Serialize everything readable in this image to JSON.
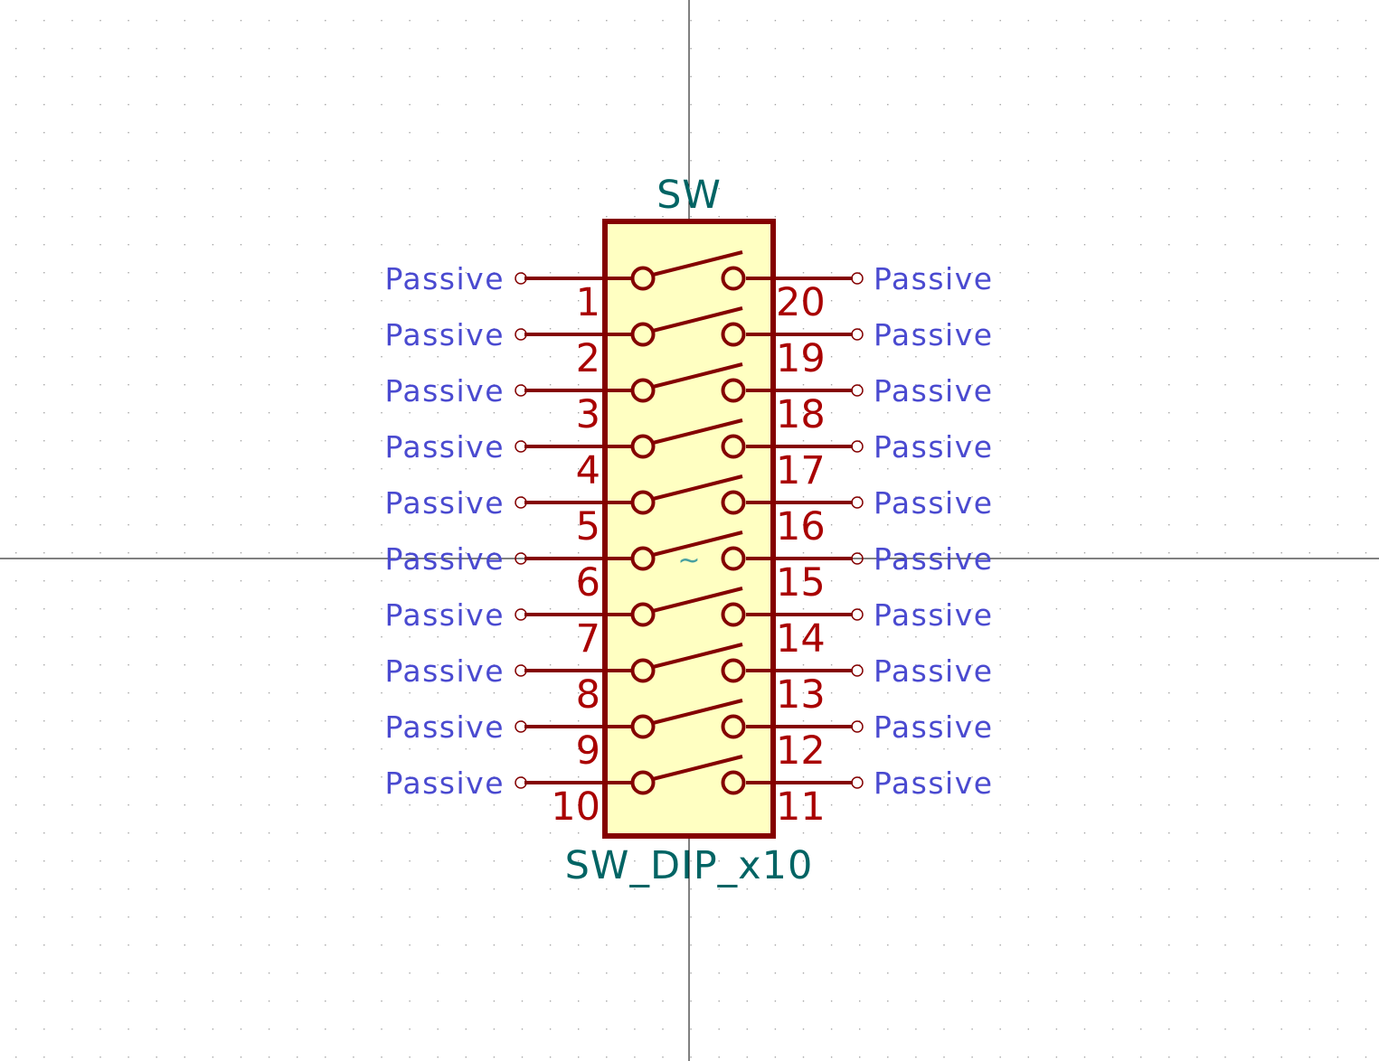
{
  "symbol": {
    "reference": "SW",
    "value": "SW_DIP_x10",
    "center_marker": "~",
    "left_pins": [
      {
        "number": "1",
        "type": "Passive"
      },
      {
        "number": "2",
        "type": "Passive"
      },
      {
        "number": "3",
        "type": "Passive"
      },
      {
        "number": "4",
        "type": "Passive"
      },
      {
        "number": "5",
        "type": "Passive"
      },
      {
        "number": "6",
        "type": "Passive"
      },
      {
        "number": "7",
        "type": "Passive"
      },
      {
        "number": "8",
        "type": "Passive"
      },
      {
        "number": "9",
        "type": "Passive"
      },
      {
        "number": "10",
        "type": "Passive"
      }
    ],
    "right_pins": [
      {
        "number": "20",
        "type": "Passive"
      },
      {
        "number": "19",
        "type": "Passive"
      },
      {
        "number": "18",
        "type": "Passive"
      },
      {
        "number": "17",
        "type": "Passive"
      },
      {
        "number": "16",
        "type": "Passive"
      },
      {
        "number": "15",
        "type": "Passive"
      },
      {
        "number": "14",
        "type": "Passive"
      },
      {
        "number": "13",
        "type": "Passive"
      },
      {
        "number": "12",
        "type": "Passive"
      },
      {
        "number": "11",
        "type": "Passive"
      }
    ]
  },
  "colors": {
    "body_stroke": "#840000",
    "body_fill": "#ffffc2",
    "pin_number": "#a90000",
    "pin_type": "#4a4ad0",
    "field_text": "#006464",
    "marker": "#48a0a0",
    "grid_dot": "#a6a6a6",
    "crosshair": "#000000"
  }
}
